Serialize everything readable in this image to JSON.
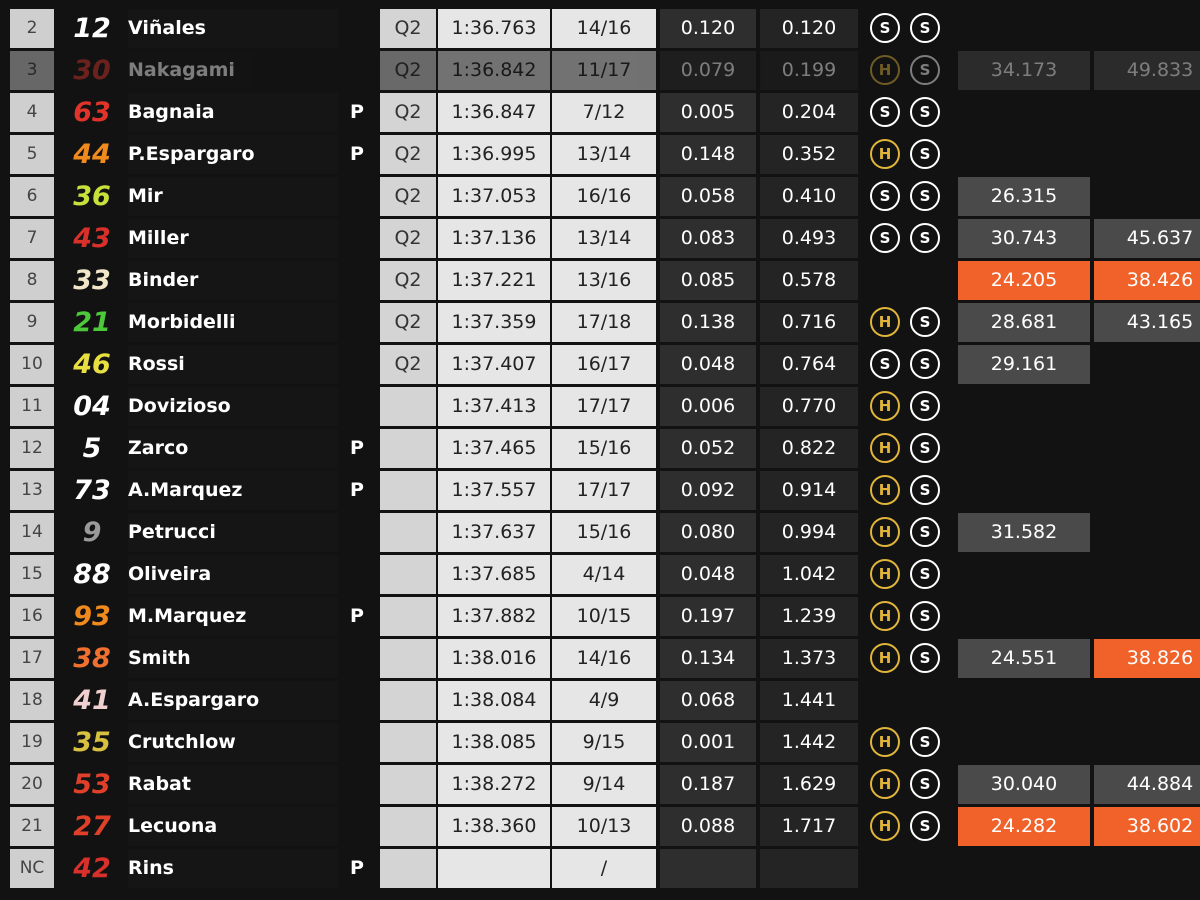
{
  "rows": [
    {
      "pos": "2",
      "number": "12",
      "number_color": "#ffffff",
      "name": "Viñales",
      "session": "Q2",
      "time": "1:36.763",
      "laps": "14/16",
      "gap": "0.120",
      "diff": "0.120",
      "tyres": [
        "S",
        "S"
      ]
    },
    {
      "pos": "3",
      "number": "30",
      "number_color": "#d8362c",
      "name": "Nakagami",
      "dimmed": true,
      "session": "Q2",
      "time": "1:36.842",
      "laps": "11/17",
      "gap": "0.079",
      "diff": "0.199",
      "tyres": [
        "H",
        "S"
      ],
      "sectors": [
        {
          "text": "34.173"
        },
        {
          "text": "49.833"
        }
      ]
    },
    {
      "pos": "4",
      "number": "63",
      "number_color": "#e0342a",
      "name": "Bagnaia",
      "pit": "P",
      "session": "Q2",
      "time": "1:36.847",
      "laps": "7/12",
      "gap": "0.005",
      "diff": "0.204",
      "tyres": [
        "S",
        "S"
      ]
    },
    {
      "pos": "5",
      "number": "44",
      "number_color": "#f08a1c",
      "name": "P.Espargaro",
      "pit": "P",
      "session": "Q2",
      "time": "1:36.995",
      "laps": "13/14",
      "gap": "0.148",
      "diff": "0.352",
      "tyres": [
        "H",
        "S"
      ]
    },
    {
      "pos": "6",
      "number": "36",
      "number_color": "#c8e03a",
      "name": "Mir",
      "session": "Q2",
      "time": "1:37.053",
      "laps": "16/16",
      "gap": "0.058",
      "diff": "0.410",
      "tyres": [
        "S",
        "S"
      ],
      "sectors": [
        {
          "text": "26.315"
        }
      ]
    },
    {
      "pos": "7",
      "number": "43",
      "number_color": "#d8302a",
      "name": "Miller",
      "session": "Q2",
      "time": "1:37.136",
      "laps": "13/14",
      "gap": "0.083",
      "diff": "0.493",
      "tyres": [
        "S",
        "S"
      ],
      "sectors": [
        {
          "text": "30.743"
        },
        {
          "text": "45.637"
        }
      ]
    },
    {
      "pos": "8",
      "number": "33",
      "number_color": "#f2e6c8",
      "name": "Binder",
      "session": "Q2",
      "time": "1:37.221",
      "laps": "13/16",
      "gap": "0.085",
      "diff": "0.578",
      "sectors": [
        {
          "text": "24.205",
          "best": true
        },
        {
          "text": "38.426",
          "best": true
        }
      ]
    },
    {
      "pos": "9",
      "number": "21",
      "number_color": "#4cc83a",
      "name": "Morbidelli",
      "session": "Q2",
      "time": "1:37.359",
      "laps": "17/18",
      "gap": "0.138",
      "diff": "0.716",
      "tyres": [
        "H",
        "S"
      ],
      "sectors": [
        {
          "text": "28.681"
        },
        {
          "text": "43.165"
        }
      ]
    },
    {
      "pos": "10",
      "number": "46",
      "number_color": "#e8e040",
      "name": "Rossi",
      "session": "Q2",
      "time": "1:37.407",
      "laps": "16/17",
      "gap": "0.048",
      "diff": "0.764",
      "tyres": [
        "S",
        "S"
      ],
      "sectors": [
        {
          "text": "29.161"
        }
      ]
    },
    {
      "pos": "11",
      "number": "04",
      "number_color": "#ffffff",
      "name": "Dovizioso",
      "time": "1:37.413",
      "laps": "17/17",
      "gap": "0.006",
      "diff": "0.770",
      "tyres": [
        "H",
        "S"
      ]
    },
    {
      "pos": "12",
      "number": "5",
      "number_color": "#ffffff",
      "name": "Zarco",
      "pit": "P",
      "time": "1:37.465",
      "laps": "15/16",
      "gap": "0.052",
      "diff": "0.822",
      "tyres": [
        "H",
        "S"
      ]
    },
    {
      "pos": "13",
      "number": "73",
      "number_color": "#ffffff",
      "name": "A.Marquez",
      "pit": "P",
      "time": "1:37.557",
      "laps": "17/17",
      "gap": "0.092",
      "diff": "0.914",
      "tyres": [
        "H",
        "S"
      ]
    },
    {
      "pos": "14",
      "number": "9",
      "number_color": "#9a9a9a",
      "name": "Petrucci",
      "time": "1:37.637",
      "laps": "15/16",
      "gap": "0.080",
      "diff": "0.994",
      "tyres": [
        "H",
        "S"
      ],
      "sectors": [
        {
          "text": "31.582"
        }
      ]
    },
    {
      "pos": "15",
      "number": "88",
      "number_color": "#ffffff",
      "name": "Oliveira",
      "time": "1:37.685",
      "laps": "4/14",
      "gap": "0.048",
      "diff": "1.042",
      "tyres": [
        "H",
        "S"
      ]
    },
    {
      "pos": "16",
      "number": "93",
      "number_color": "#f08a1c",
      "name": "M.Marquez",
      "pit": "P",
      "time": "1:37.882",
      "laps": "10/15",
      "gap": "0.197",
      "diff": "1.239",
      "tyres": [
        "H",
        "S"
      ]
    },
    {
      "pos": "17",
      "number": "38",
      "number_color": "#f07030",
      "name": "Smith",
      "time": "1:38.016",
      "laps": "14/16",
      "gap": "0.134",
      "diff": "1.373",
      "tyres": [
        "H",
        "S"
      ],
      "sectors": [
        {
          "text": "24.551"
        },
        {
          "text": "38.826",
          "best": true
        }
      ]
    },
    {
      "pos": "18",
      "number": "41",
      "number_color": "#f0d0d0",
      "name": "A.Espargaro",
      "time": "1:38.084",
      "laps": "4/9",
      "gap": "0.068",
      "diff": "1.441"
    },
    {
      "pos": "19",
      "number": "35",
      "number_color": "#d8c040",
      "name": "Crutchlow",
      "time": "1:38.085",
      "laps": "9/15",
      "gap": "0.001",
      "diff": "1.442",
      "tyres": [
        "H",
        "S"
      ]
    },
    {
      "pos": "20",
      "number": "53",
      "number_color": "#e0402a",
      "name": "Rabat",
      "time": "1:38.272",
      "laps": "9/14",
      "gap": "0.187",
      "diff": "1.629",
      "tyres": [
        "H",
        "S"
      ],
      "sectors": [
        {
          "text": "30.040"
        },
        {
          "text": "44.884"
        }
      ]
    },
    {
      "pos": "21",
      "number": "27",
      "number_color": "#e0402a",
      "name": "Lecuona",
      "time": "1:38.360",
      "laps": "10/13",
      "gap": "0.088",
      "diff": "1.717",
      "tyres": [
        "H",
        "S"
      ],
      "sectors": [
        {
          "text": "24.282",
          "best": true
        },
        {
          "text": "38.602",
          "best": true
        }
      ]
    },
    {
      "pos": "NC",
      "number": "42",
      "number_color": "#d8302a",
      "name": "Rins",
      "pit": "P",
      "laps": "/"
    }
  ]
}
